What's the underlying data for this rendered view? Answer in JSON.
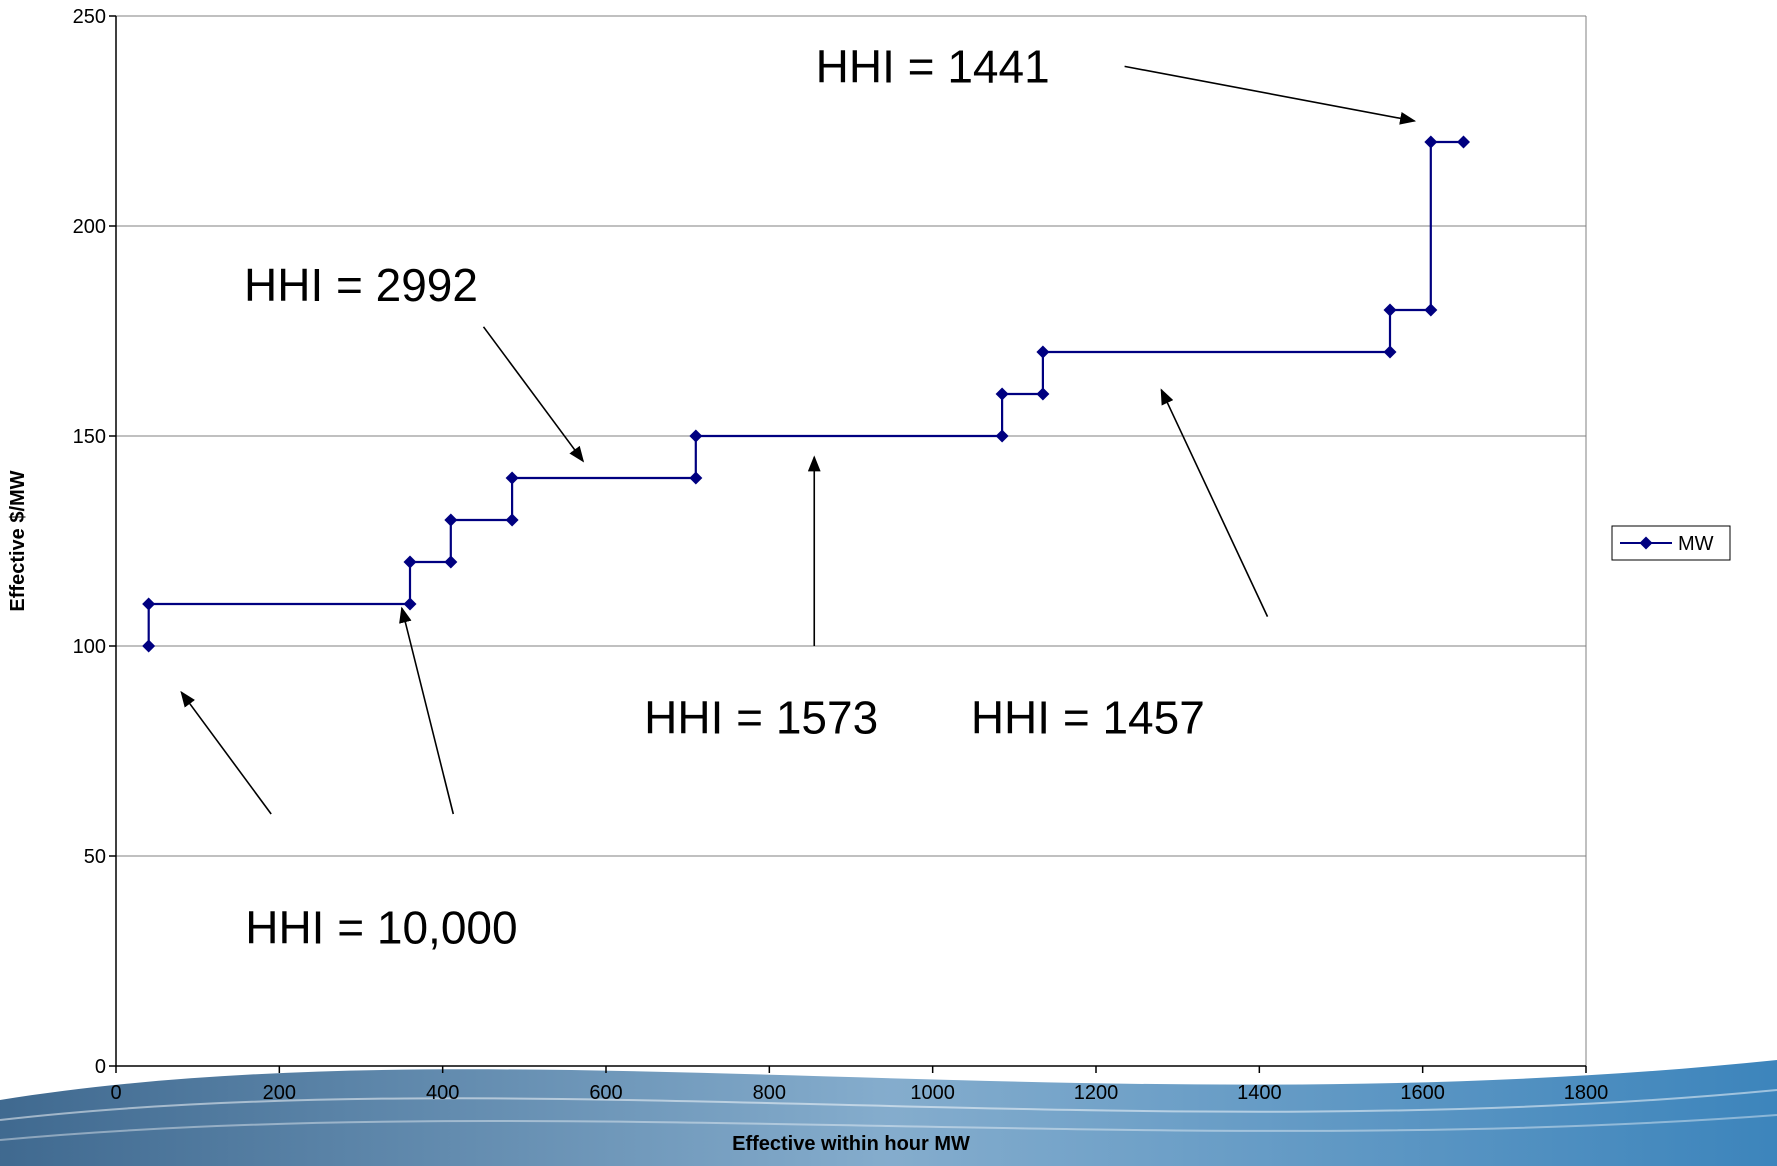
{
  "chart_data": {
    "type": "line",
    "xlabel": "Effective within hour MW",
    "ylabel": "Effective $/MW",
    "xlim": [
      0,
      1800
    ],
    "ylim": [
      0,
      250
    ],
    "x_ticks": [
      0,
      200,
      400,
      600,
      800,
      1000,
      1200,
      1400,
      1600,
      1800
    ],
    "y_ticks": [
      0,
      50,
      100,
      150,
      200,
      250
    ],
    "grid": "horizontal",
    "legend_position": "right",
    "colors": {
      "series": "#000080",
      "grid": "#808080",
      "axis": "#000000"
    },
    "series": [
      {
        "name": "MW",
        "marker": "diamond",
        "line": "step",
        "x": [
          40,
          40,
          360,
          360,
          410,
          410,
          485,
          485,
          710,
          710,
          1085,
          1085,
          1135,
          1135,
          1560,
          1560,
          1610,
          1610,
          1650
        ],
        "y": [
          100,
          110,
          110,
          120,
          120,
          130,
          130,
          140,
          140,
          150,
          150,
          160,
          160,
          170,
          170,
          180,
          180,
          220,
          220
        ]
      }
    ],
    "annotations": [
      {
        "text": "HHI = 1441",
        "x": 1000,
        "y": 238,
        "arrow_from": [
          1235,
          238
        ],
        "arrow_to": [
          1590,
          225
        ]
      },
      {
        "text": "HHI = 2992",
        "x": 300,
        "y": 186,
        "arrow_from": [
          450,
          176
        ],
        "arrow_to": [
          572,
          144
        ]
      },
      {
        "text": "HHI = 1573",
        "x": 790,
        "y": 83,
        "arrow_from": [
          855,
          100
        ],
        "arrow_to": [
          855,
          145
        ]
      },
      {
        "text": "HHI = 1457",
        "x": 1190,
        "y": 83,
        "arrow_from": [
          1410,
          107
        ],
        "arrow_to": [
          1280,
          161
        ]
      },
      {
        "text": "HHI = 10,000",
        "x": 325,
        "y": 33,
        "arrow_from": [
          190,
          60
        ],
        "arrow_to": [
          80,
          89
        ]
      },
      {
        "text": "",
        "x": 0,
        "y": 0,
        "arrow_from": [
          413,
          60
        ],
        "arrow_to": [
          350,
          109
        ]
      }
    ]
  }
}
